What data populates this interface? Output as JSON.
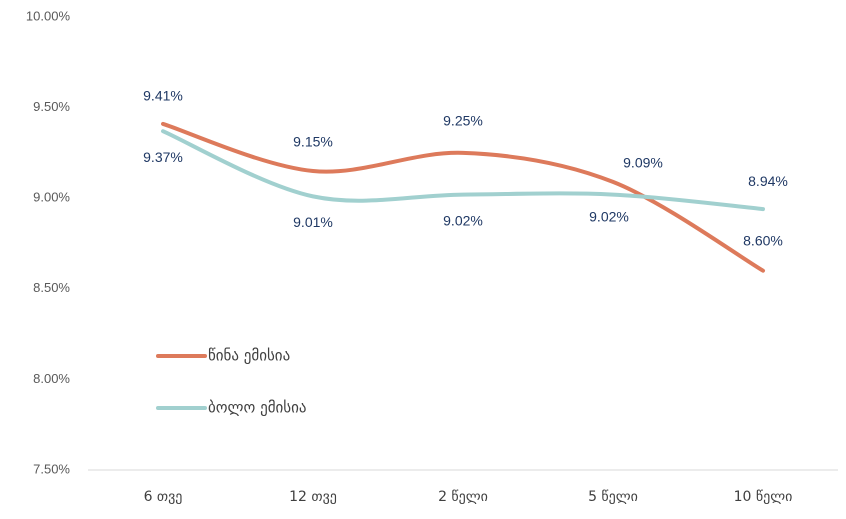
{
  "chart_data": {
    "type": "line",
    "categories": [
      "6 თვე",
      "12 თვე",
      "2 წელი",
      "5 წელი",
      "10 წელი"
    ],
    "series": [
      {
        "name": "წინა ემისია",
        "color": "#dd7a5b",
        "values": [
          9.41,
          9.15,
          9.25,
          9.09,
          8.6
        ],
        "value_labels": [
          "9.41%",
          "9.15%",
          "9.25%",
          "9.09%",
          "8.60%"
        ]
      },
      {
        "name": "ბოლო ემისია",
        "color": "#a1d0cf",
        "values": [
          9.37,
          9.01,
          9.02,
          9.02,
          8.94
        ],
        "value_labels": [
          "9.37%",
          "9.01%",
          "9.02%",
          "9.02%",
          "8.94%"
        ]
      }
    ],
    "ylim": [
      7.5,
      10
    ],
    "yticks": [
      {
        "value": 7.5,
        "label": "7.50%"
      },
      {
        "value": 8,
        "label": "8.00%"
      },
      {
        "value": 8.5,
        "label": "8.50%"
      },
      {
        "value": 9,
        "label": "9.00%"
      },
      {
        "value": 9.5,
        "label": "9.50%"
      },
      {
        "value": 10,
        "label": "10.00%"
      }
    ],
    "grid": false,
    "legend": "left"
  }
}
